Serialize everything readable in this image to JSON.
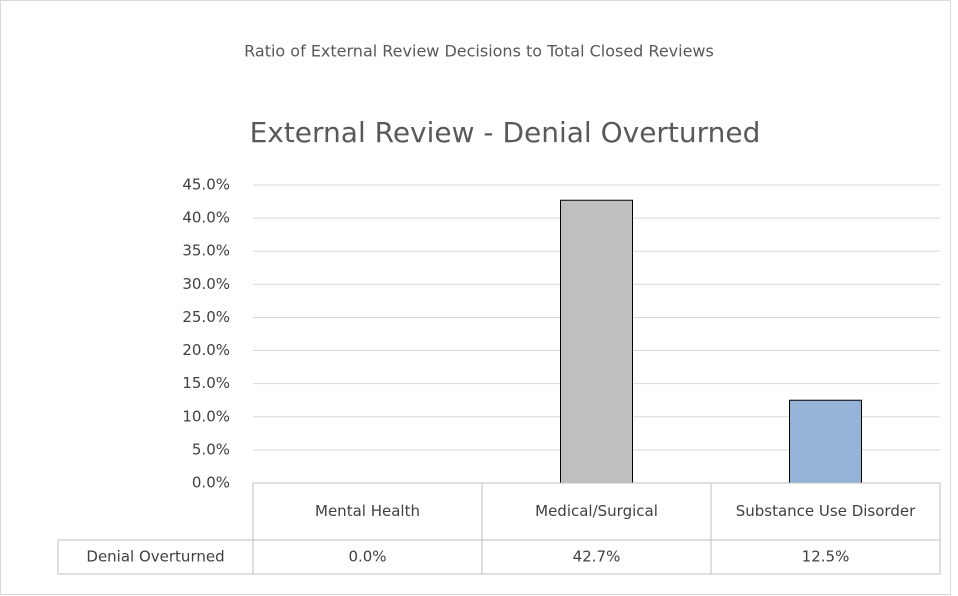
{
  "chart_data": {
    "type": "bar",
    "subtitle": "Ratio of External Review Decisions to Total Closed Reviews",
    "title": "External Review - Denial Overturned",
    "categories": [
      "Mental Health",
      "Medical/Surgical",
      "Substance Use Disorder"
    ],
    "series": [
      {
        "name": "Denial Overturned",
        "colors": [
          "#bfbfbf",
          "#bfbfbf",
          "#95b3d7"
        ],
        "values": [
          0,
          42.7,
          12.5
        ],
        "value_labels": [
          "0.0%",
          "42.7%",
          "12.5%"
        ]
      }
    ],
    "ylim": [
      0,
      45
    ],
    "yticks": [
      {
        "value": 0,
        "label": "0.0%"
      },
      {
        "value": 5,
        "label": "5.0%"
      },
      {
        "value": 10,
        "label": "10.0%"
      },
      {
        "value": 15,
        "label": "15.0%"
      },
      {
        "value": 20,
        "label": "20.0%"
      },
      {
        "value": 25,
        "label": "25.0%"
      },
      {
        "value": 30,
        "label": "30.0%"
      },
      {
        "value": 35,
        "label": "35.0%"
      },
      {
        "value": 40,
        "label": "40.0%"
      },
      {
        "value": 45,
        "label": "45.0%"
      }
    ],
    "grid": true,
    "data_table": true
  }
}
